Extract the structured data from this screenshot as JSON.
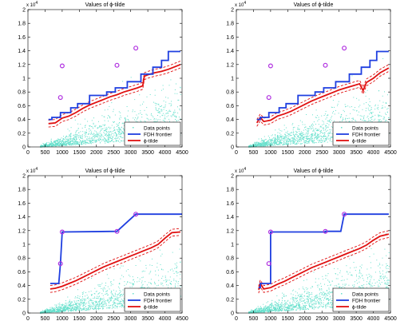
{
  "figure": {
    "panel_count": 4
  },
  "chart_data": [
    {
      "type": "scatter",
      "title": "Values of ϕ-tilde",
      "xlabel": "",
      "ylabel": "",
      "xlim": [
        0,
        4500
      ],
      "ylim": [
        0,
        20000
      ],
      "y_multiplier_label": "x 10",
      "y_multiplier_exp": "4",
      "xticks": [
        "0",
        "500",
        "1000",
        "1500",
        "2000",
        "2500",
        "3000",
        "3500",
        "4000",
        "4500"
      ],
      "yticks": [
        "0",
        "0.2",
        "0.4",
        "0.6",
        "0.8",
        "1",
        "1.2",
        "1.4",
        "1.6",
        "1.8",
        "2"
      ],
      "legend_position": "bottom-right",
      "legend": [
        "Data points",
        "FDH frontier",
        "ϕ-tilde"
      ],
      "colors": {
        "data_points": "#66e0cc",
        "frontier": "#1f3fe0",
        "phi": "#e01010",
        "outliers": "#b030e0"
      },
      "outliers": [
        {
          "x": 950,
          "y": 7200
        },
        {
          "x": 1000,
          "y": 11800
        },
        {
          "x": 2600,
          "y": 11900
        },
        {
          "x": 3150,
          "y": 14400
        }
      ],
      "frontier": {
        "x": [
          600,
          700,
          700,
          950,
          950,
          1250,
          1250,
          1450,
          1450,
          1800,
          1800,
          2300,
          2300,
          2550,
          2550,
          2900,
          2900,
          3300,
          3300,
          3650,
          3650,
          3900,
          3900,
          4100,
          4100,
          4450
        ],
        "y": [
          4000,
          4000,
          4300,
          4300,
          5000,
          5000,
          5700,
          5700,
          6300,
          6300,
          7500,
          7500,
          8000,
          8000,
          8600,
          8600,
          9500,
          9500,
          10600,
          10600,
          11600,
          11600,
          12600,
          12600,
          13900,
          13900
        ]
      },
      "phi": {
        "x": [
          600,
          800,
          1000,
          1200,
          1400,
          1600,
          1800,
          2000,
          2200,
          2400,
          2600,
          2800,
          3000,
          3200,
          3350,
          3400,
          3500,
          3700,
          3900,
          4100,
          4300,
          4450
        ],
        "y": [
          3400,
          3500,
          4200,
          4500,
          5000,
          5600,
          6100,
          6500,
          6900,
          7300,
          7600,
          8000,
          8300,
          8600,
          8900,
          10300,
          10500,
          10800,
          11000,
          11300,
          11700,
          12000
        ]
      },
      "phi_band": 500
    },
    {
      "type": "scatter",
      "title": "Values of ϕ-tilde",
      "xlabel": "",
      "ylabel": "",
      "xlim": [
        0,
        4500
      ],
      "ylim": [
        0,
        20000
      ],
      "y_multiplier_label": "x 10",
      "y_multiplier_exp": "4",
      "xticks": [
        "0",
        "500",
        "1000",
        "1500",
        "2000",
        "2500",
        "3000",
        "3500",
        "4000",
        "4500"
      ],
      "yticks": [
        "0",
        "0.2",
        "0.4",
        "0.6",
        "0.8",
        "1",
        "1.2",
        "1.4",
        "1.6",
        "1.8",
        "2"
      ],
      "legend_position": "bottom-right",
      "legend": [
        "Data points",
        "FDH frontier",
        "ϕ-tilde"
      ],
      "colors": {
        "data_points": "#66e0cc",
        "frontier": "#1f3fe0",
        "phi": "#e01010",
        "outliers": "#b030e0"
      },
      "outliers": [
        {
          "x": 950,
          "y": 7200
        },
        {
          "x": 1000,
          "y": 11800
        },
        {
          "x": 2600,
          "y": 11900
        },
        {
          "x": 3150,
          "y": 14400
        }
      ],
      "frontier": {
        "x": [
          600,
          700,
          700,
          950,
          950,
          1250,
          1250,
          1450,
          1450,
          1800,
          1800,
          2300,
          2300,
          2550,
          2550,
          2900,
          2900,
          3300,
          3300,
          3650,
          3650,
          3900,
          3900,
          4100,
          4100,
          4450
        ],
        "y": [
          4000,
          4000,
          4300,
          4300,
          5000,
          5000,
          5700,
          5700,
          6300,
          6300,
          7500,
          7500,
          8000,
          8000,
          8600,
          8600,
          9500,
          9500,
          10600,
          10600,
          11600,
          11600,
          12600,
          12600,
          13900,
          13900
        ]
      },
      "phi": {
        "x": [
          600,
          700,
          800,
          1000,
          1200,
          1400,
          1600,
          1800,
          2000,
          2200,
          2400,
          2600,
          2800,
          3000,
          3200,
          3400,
          3600,
          3700,
          3800,
          4000,
          4200,
          4450
        ],
        "y": [
          3500,
          4300,
          3700,
          3900,
          4500,
          4800,
          5200,
          5700,
          6200,
          6700,
          7100,
          7500,
          7900,
          8300,
          8600,
          8900,
          9200,
          8200,
          9400,
          10000,
          10800,
          11500
        ]
      },
      "phi_band": 500
    },
    {
      "type": "scatter",
      "title": "Values of ϕ-tilde",
      "xlabel": "",
      "ylabel": "",
      "xlim": [
        0,
        4500
      ],
      "ylim": [
        0,
        20000
      ],
      "y_multiplier_label": "x 10",
      "y_multiplier_exp": "4",
      "xticks": [
        "0",
        "500",
        "1000",
        "1500",
        "2000",
        "2500",
        "3000",
        "3500",
        "4000",
        "4500"
      ],
      "yticks": [
        "0",
        "0.2",
        "0.4",
        "0.6",
        "0.8",
        "1",
        "1.2",
        "1.4",
        "1.6",
        "1.8",
        "2"
      ],
      "legend_position": "bottom-right",
      "legend": [
        "Data points",
        "FDH frontier",
        "ϕ-tilde"
      ],
      "colors": {
        "data_points": "#66e0cc",
        "frontier": "#1f3fe0",
        "phi": "#e01010",
        "outliers": "#b030e0"
      },
      "outliers": [
        {
          "x": 950,
          "y": 7200
        },
        {
          "x": 1000,
          "y": 11800
        },
        {
          "x": 2600,
          "y": 11900
        },
        {
          "x": 3150,
          "y": 14400
        }
      ],
      "frontier": {
        "x": [
          650,
          900,
          950,
          1000,
          2600,
          3150,
          4500
        ],
        "y": [
          4300,
          4300,
          7200,
          11800,
          11900,
          14400,
          14400
        ]
      },
      "phi": {
        "x": [
          650,
          800,
          1000,
          1200,
          1400,
          1600,
          1800,
          2000,
          2200,
          2400,
          2600,
          2800,
          3000,
          3200,
          3400,
          3600,
          3800,
          4000,
          4200,
          4450
        ],
        "y": [
          3500,
          3600,
          3900,
          4300,
          4700,
          5200,
          5700,
          6200,
          6700,
          7100,
          7500,
          7900,
          8300,
          8700,
          9100,
          9500,
          10000,
          10900,
          11700,
          11800
        ]
      },
      "phi_band": 500
    },
    {
      "type": "scatter",
      "title": "Values of ϕ-tilde",
      "xlabel": "",
      "ylabel": "",
      "xlim": [
        0,
        4500
      ],
      "ylim": [
        0,
        20000
      ],
      "y_multiplier_label": "x 10",
      "y_multiplier_exp": "4",
      "xticks": [
        "0",
        "500",
        "1000",
        "1500",
        "2000",
        "2500",
        "3000",
        "3500",
        "4000",
        "4500"
      ],
      "yticks": [
        "0",
        "0.2",
        "0.4",
        "0.6",
        "0.8",
        "1",
        "1.2",
        "1.4",
        "1.6",
        "1.8",
        "2"
      ],
      "legend_position": "bottom-right",
      "legend": [
        "Data points",
        "FDH frontier",
        "ϕ-tilde"
      ],
      "colors": {
        "data_points": "#66e0cc",
        "frontier": "#1f3fe0",
        "phi": "#e01010",
        "outliers": "#b030e0"
      },
      "outliers": [
        {
          "x": 950,
          "y": 7200
        },
        {
          "x": 1000,
          "y": 11800
        },
        {
          "x": 2600,
          "y": 11900
        },
        {
          "x": 3150,
          "y": 14400
        }
      ],
      "frontier": {
        "x": [
          650,
          700,
          700,
          1000,
          1000,
          2600,
          2600,
          3050,
          3150,
          4450
        ],
        "y": [
          3700,
          3700,
          4300,
          4300,
          11800,
          11800,
          11900,
          11900,
          14400,
          14400
        ]
      },
      "phi": {
        "x": [
          650,
          700,
          800,
          1000,
          1200,
          1400,
          1600,
          1800,
          2000,
          2200,
          2400,
          2600,
          2800,
          3000,
          3200,
          3400,
          3600,
          3800,
          4000,
          4200,
          4450
        ],
        "y": [
          3400,
          4300,
          3500,
          3700,
          4200,
          4600,
          5100,
          5600,
          6100,
          6600,
          7000,
          7400,
          7800,
          8200,
          8600,
          9000,
          9400,
          9900,
          10600,
          11200,
          11500
        ]
      },
      "phi_band": 500
    }
  ]
}
